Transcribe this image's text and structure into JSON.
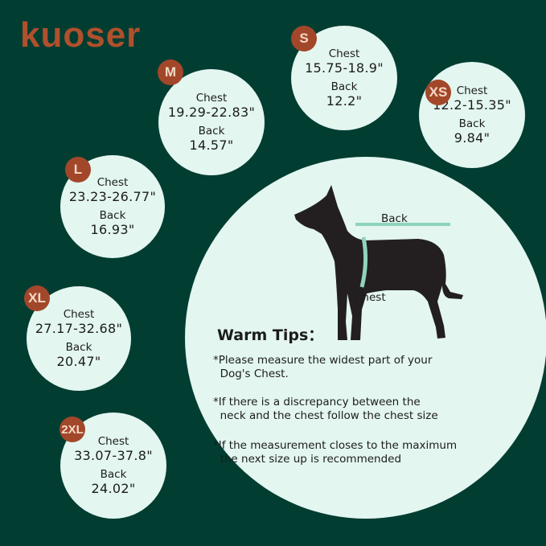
{
  "brand": {
    "logo_text": "kuoser",
    "color": "#b0502c"
  },
  "colors": {
    "background": "#023d32",
    "circle": "#e3f6f0",
    "badge": "#a3472a"
  },
  "sizes": [
    {
      "size": "M",
      "chest_label": "Chest",
      "chest": "19.29-22.83\"",
      "back_label": "Back",
      "back": "14.57\""
    },
    {
      "size": "S",
      "chest_label": "Chest",
      "chest": "15.75-18.9\"",
      "back_label": "Back",
      "back": "12.2\""
    },
    {
      "size": "XS",
      "chest_label": "Chest",
      "chest": "12.2-15.35\"",
      "back_label": "Back",
      "back": "9.84\""
    },
    {
      "size": "L",
      "chest_label": "Chest",
      "chest": "23.23-26.77\"",
      "back_label": "Back",
      "back": "16.93\""
    },
    {
      "size": "XL",
      "chest_label": "Chest",
      "chest": "27.17-32.68\"",
      "back_label": "Back",
      "back": "20.47\""
    },
    {
      "size": "2XL",
      "chest_label": "Chest",
      "chest": "33.07-37.8\"",
      "back_label": "Back",
      "back": "24.02\""
    }
  ],
  "diagram": {
    "back_label": "Back",
    "chest_label": "Chest",
    "icon": "dog-silhouette"
  },
  "tips": {
    "title": "Warm Tips：",
    "items": [
      "*Please measure the widest part of your\n  Dog's Chest.",
      "*If there is a discrepancy between the\n  neck and the chest follow the chest size",
      "*If the measurement closes to the maximum\n  the next size up is recommended"
    ]
  }
}
